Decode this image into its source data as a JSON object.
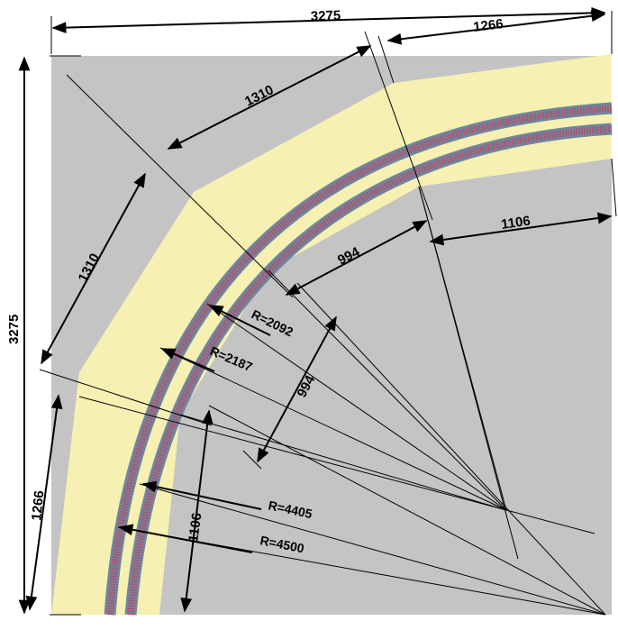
{
  "colors": {
    "background": "#c4c4c4",
    "roadbed": "#f6f0b2",
    "track_rail": "#6d87a0",
    "track_ties": "#b4506a",
    "lines": "#000000"
  },
  "dimensions": {
    "top_total": "3275",
    "top_segment": "1266",
    "upper_diagonal": "1310",
    "left_diagonal": "1310",
    "left_total": "3275",
    "left_bottom": "1266",
    "right_inner": "1106",
    "inner_top": "994",
    "inner_diagonal": "994",
    "inner_bottom": "1106"
  },
  "radii": {
    "r1": "R=2092",
    "r2": "R=2187",
    "r3": "R=4405",
    "r4": "R=4500"
  }
}
